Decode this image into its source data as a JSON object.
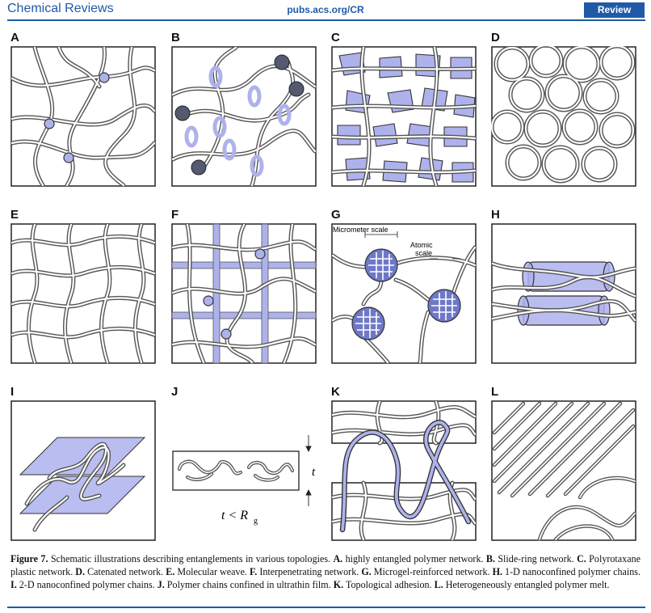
{
  "header": {
    "journal": "Chemical Reviews",
    "url": "pubs.acs.org/CR",
    "article_type": "Review"
  },
  "panels": [
    {
      "letter": "A"
    },
    {
      "letter": "B"
    },
    {
      "letter": "C"
    },
    {
      "letter": "D"
    },
    {
      "letter": "E"
    },
    {
      "letter": "F"
    },
    {
      "letter": "G"
    },
    {
      "letter": "H"
    },
    {
      "letter": "I"
    },
    {
      "letter": "J"
    },
    {
      "letter": "K"
    },
    {
      "letter": "L"
    }
  ],
  "panel_g": {
    "micrometer_label": "Micrometer scale",
    "atomic_label_1": "Atomic",
    "atomic_label_2": "scale"
  },
  "panel_j": {
    "thickness_symbol": "t",
    "relation_text": "t < R",
    "relation_subscript": "g"
  },
  "caption": {
    "figure_label": "Figure 7.",
    "intro": " Schematic illustrations describing entanglements in various topologies. ",
    "items": [
      {
        "key": "A.",
        "text": " highly entangled polymer network. "
      },
      {
        "key": "B.",
        "text": " Slide-ring network. "
      },
      {
        "key": "C.",
        "text": " Polyrotaxane plastic network. "
      },
      {
        "key": "D.",
        "text": " Catenated network. "
      },
      {
        "key": "E.",
        "text": " Molecular weave. "
      },
      {
        "key": "F.",
        "text": " Interpenetrating network. "
      },
      {
        "key": "G.",
        "text": " Microgel-reinforced network. "
      },
      {
        "key": "H.",
        "text": " 1-D nanoconfined polymer chains. "
      },
      {
        "key": "I.",
        "text": " 2-D nanoconfined polymer chains. "
      },
      {
        "key": "J.",
        "text": " Polymer chains confined in ultrathin film. "
      },
      {
        "key": "K.",
        "text": " Topological adhesion. "
      },
      {
        "key": "L.",
        "text": " Heterogeneously entangled polymer melt."
      }
    ]
  },
  "colors": {
    "brand_blue": "#1f5aa8",
    "accent_lavender": "#aeb2ec",
    "node_dark": "#555a70",
    "strand": "#555555"
  }
}
